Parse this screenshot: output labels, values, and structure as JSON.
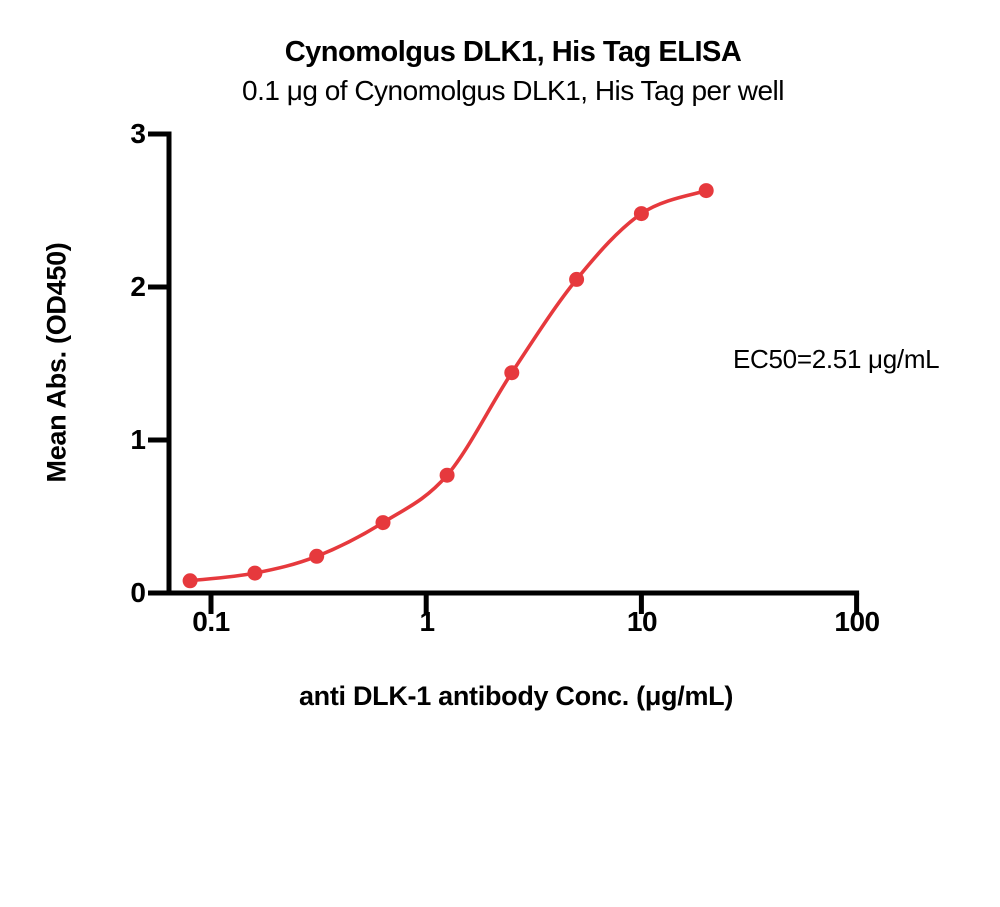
{
  "title": "Cynomolgus DLK1, His Tag ELISA",
  "subtitle": "0.1 μg of Cynomolgus DLK1, His Tag per well",
  "annotation": {
    "ec50_label": "EC50=2.51 μg/mL"
  },
  "chart_data": {
    "type": "scatter",
    "title": "Cynomolgus DLK1, His Tag ELISA",
    "subtitle": "0.1 μg of Cynomolgus DLK1, His Tag per well",
    "xlabel": "anti DLK-1 antibody Conc. (μg/mL)",
    "ylabel": "Mean Abs. (OD450)",
    "x_scale": "log10",
    "xlim": [
      0.065,
      100
    ],
    "ylim": [
      0,
      3
    ],
    "x_ticks": [
      0.1,
      1,
      10,
      100
    ],
    "x_tick_labels": [
      "0.1",
      "1",
      "10",
      "100"
    ],
    "y_ticks": [
      0,
      1,
      2,
      3
    ],
    "y_tick_labels": [
      "0",
      "1",
      "2",
      "3"
    ],
    "grid": false,
    "legend": "none",
    "series": [
      {
        "name": "anti DLK-1 antibody",
        "x": [
          0.08,
          0.16,
          0.31,
          0.63,
          1.25,
          2.5,
          5,
          10,
          20
        ],
        "y": [
          0.08,
          0.13,
          0.24,
          0.46,
          0.77,
          1.44,
          2.05,
          2.48,
          2.63
        ]
      }
    ],
    "fit": "4PL sigmoidal dose-response curve",
    "ec50_value": 2.51,
    "ec50_units": "μg/mL",
    "colors": {
      "series": "#E6393D",
      "axis": "#000000",
      "background": "#FFFFFF"
    }
  }
}
